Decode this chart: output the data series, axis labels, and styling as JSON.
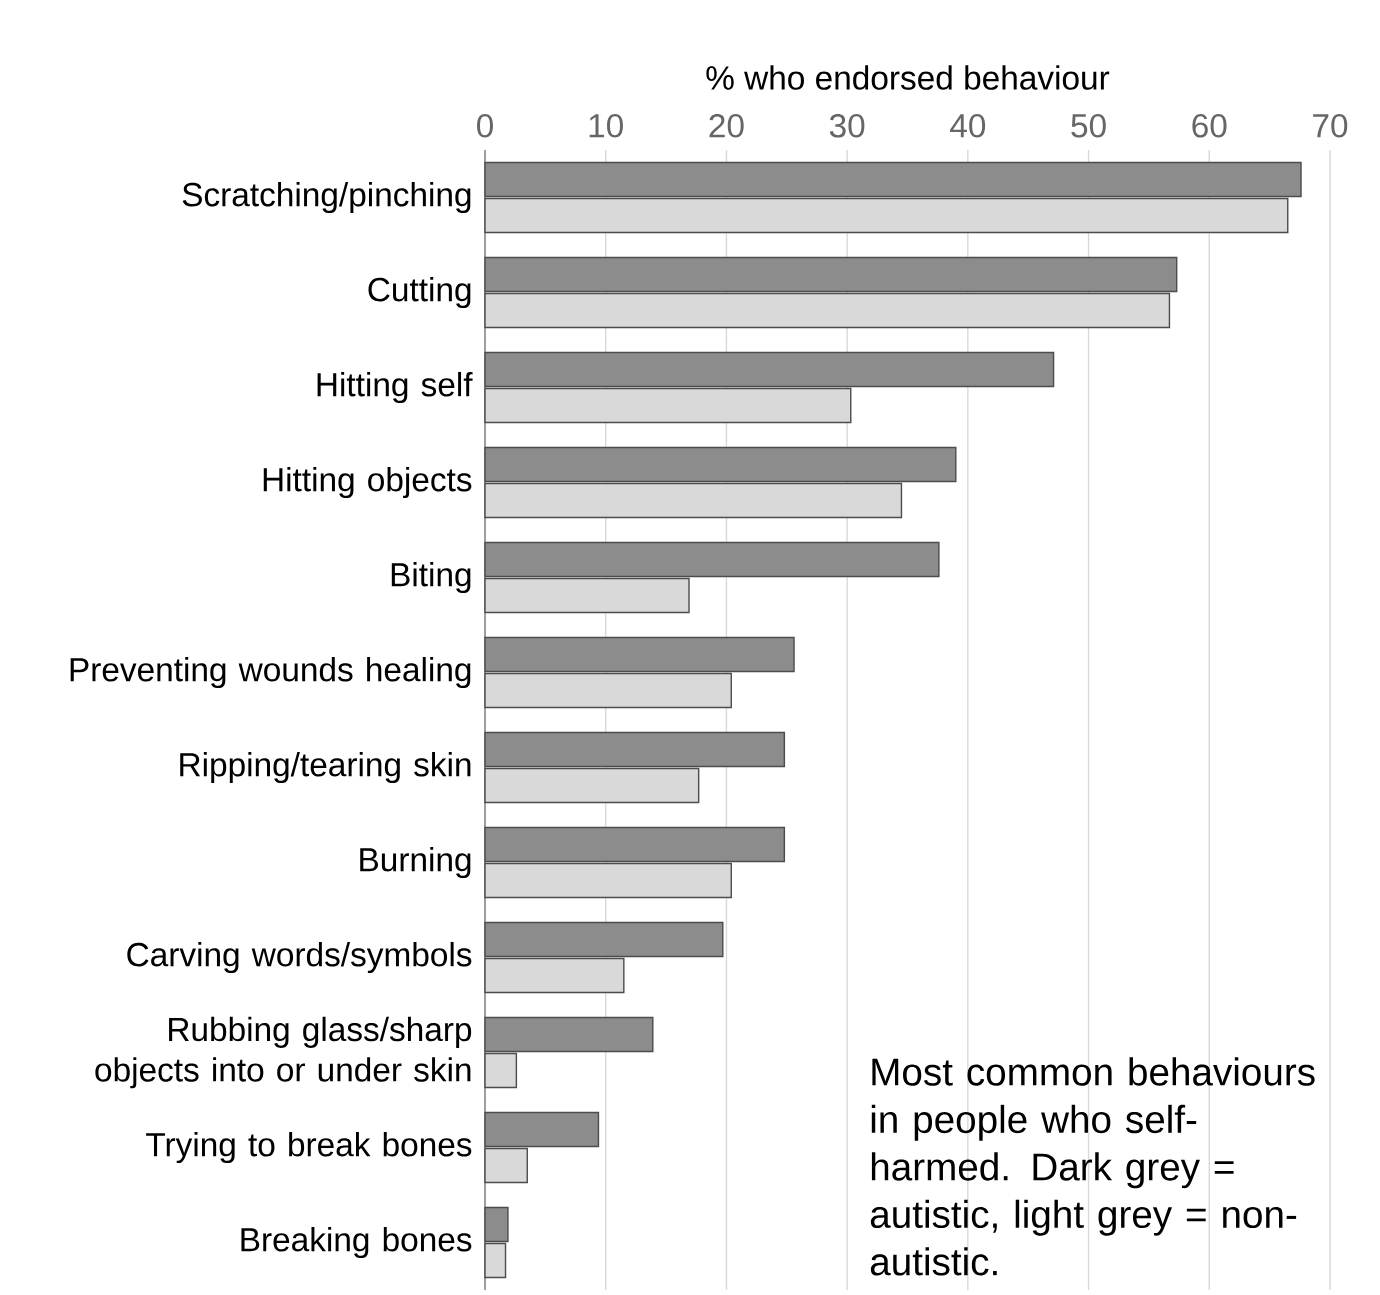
{
  "chart_data": {
    "type": "bar",
    "orientation": "horizontal",
    "xlabel": "% who endorsed behaviour",
    "categories": [
      "Scratching/pinching",
      "Cutting",
      "Hitting self",
      "Hitting objects",
      "Biting",
      "Preventing wounds healing",
      "Ripping/tearing skin",
      "Burning",
      "Carving words/symbols",
      "Rubbing glass/sharp objects into or under skin",
      "Trying to break bones",
      "Breaking bones"
    ],
    "series": [
      {
        "color": "#8c8c8c",
        "values": [
          67.6,
          57.3,
          47.1,
          39.0,
          37.6,
          25.6,
          24.8,
          24.8,
          19.7,
          13.9,
          9.4,
          1.9
        ]
      },
      {
        "color": "#d9d9d9",
        "values": [
          66.5,
          56.7,
          30.3,
          34.5,
          16.9,
          20.4,
          17.7,
          20.4,
          11.5,
          2.6,
          3.5,
          1.7
        ]
      }
    ],
    "xlim": [
      0,
      70
    ],
    "xticks": [
      0,
      10,
      20,
      30,
      40,
      50,
      60,
      70
    ],
    "grid": "x",
    "annotations": [
      "Most common behaviours in people who self-harmed. Dark grey = autistic, light grey = non-autistic."
    ]
  }
}
